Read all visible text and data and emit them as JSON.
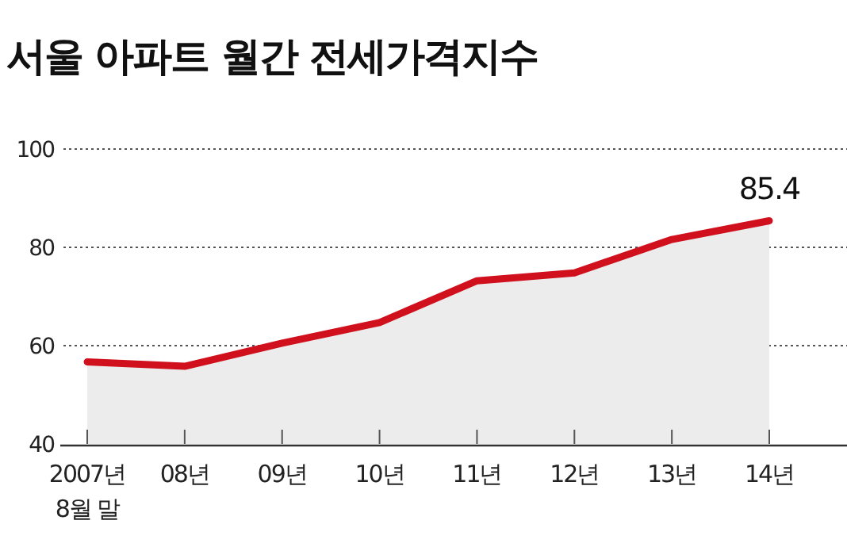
{
  "chart_data": {
    "type": "area",
    "title": "서울 아파트 월간 전세가격지수",
    "categories": [
      "2007년\n8월 말",
      "08년",
      "09년",
      "10년",
      "11년",
      "12년",
      "13년",
      "14년"
    ],
    "series": [
      {
        "color": "#d0101c",
        "values": [
          56.7,
          55.8,
          60.5,
          64.7,
          73.2,
          74.8,
          81.6,
          85.4
        ],
        "value_labels": [
          null,
          null,
          null,
          null,
          null,
          null,
          null,
          "85.4"
        ]
      }
    ],
    "ylim": [
      40,
      100
    ],
    "yticks": [
      40,
      60,
      80,
      100
    ],
    "grid": "y"
  }
}
